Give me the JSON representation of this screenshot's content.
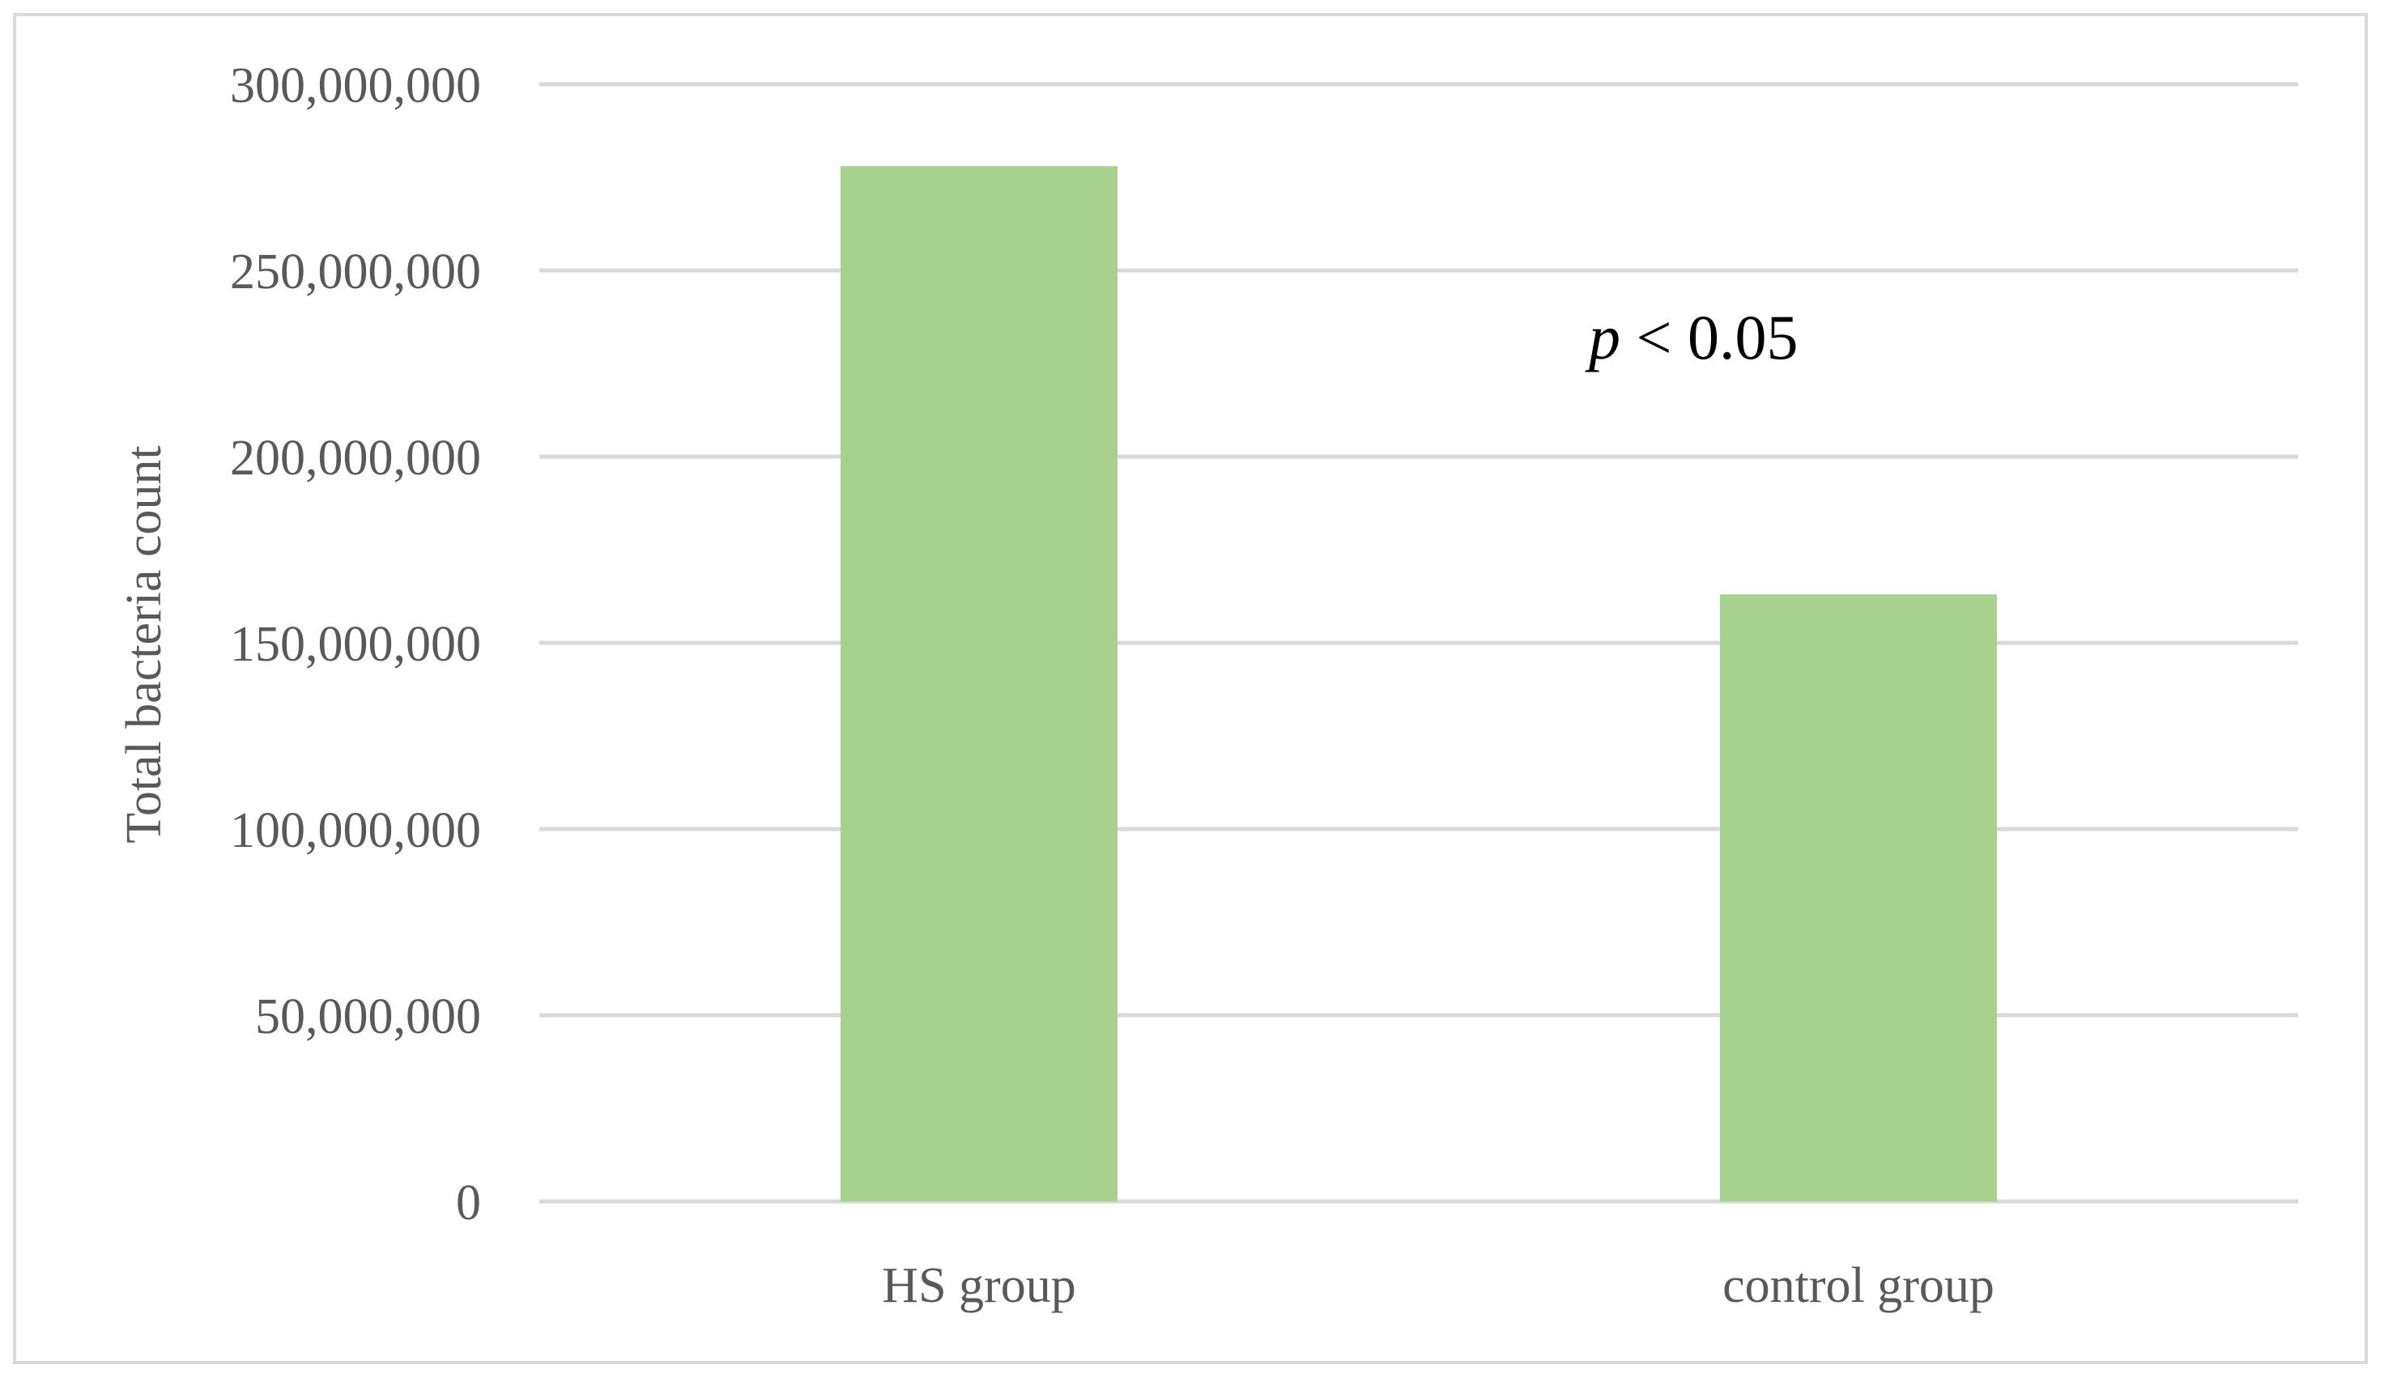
{
  "chart_data": {
    "type": "bar",
    "categories": [
      "HS group",
      "control group"
    ],
    "values": [
      278000000,
      163000000
    ],
    "title": "",
    "xlabel": "",
    "ylabel": "Total bacteria count",
    "ylim": [
      0,
      300000000
    ],
    "yticks": [
      0,
      50000000,
      100000000,
      150000000,
      200000000,
      250000000,
      300000000
    ],
    "ytick_labels": [
      "0",
      "50,000,000",
      "100,000,000",
      "150,000,000",
      "200,000,000",
      "250,000,000",
      "300,000,000"
    ],
    "grid": true,
    "legend": "none",
    "bar_color": "#a9d18e",
    "grid_color": "#d9d9d9",
    "annotation": {
      "italic": "p",
      "rest": " < 0.05"
    }
  }
}
